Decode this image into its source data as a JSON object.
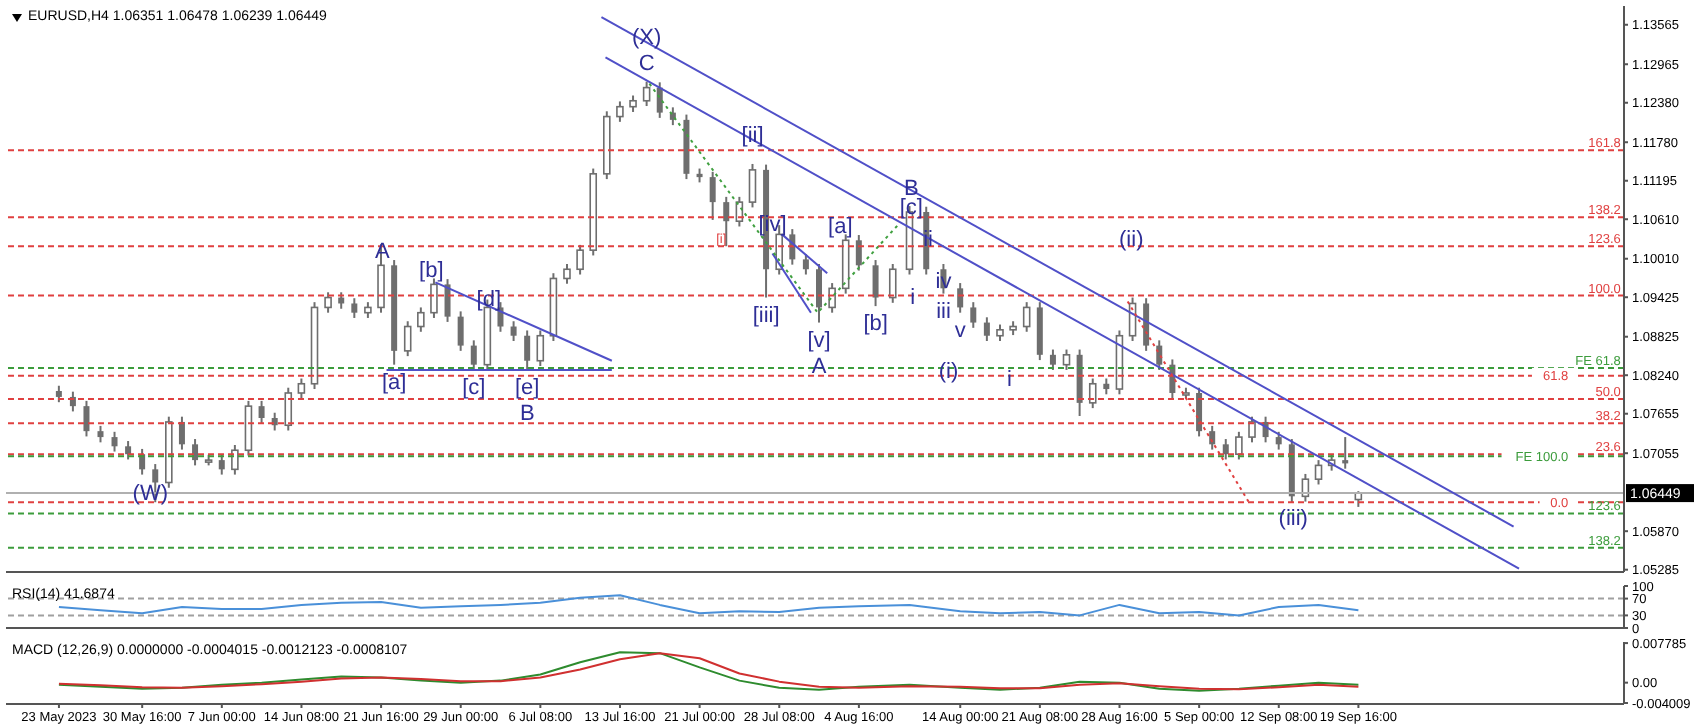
{
  "chart_data": [
    {
      "type": "candlestick",
      "title": "EURUSD,H4 1.06351 1.06478 1.06239 1.06449",
      "color": "#6e6e6e",
      "x": [
        "2023-05-23T00:00",
        "2023-05-24T07:00",
        "2023-05-25T13:00",
        "2023-05-26T20:00",
        "2023-05-28T03:00",
        "2023-05-29T09:00",
        "2023-05-30T16:00",
        "2023-05-31T21:00",
        "2023-06-02T03:00",
        "2023-06-03T08:00",
        "2023-06-04T13:00",
        "2023-06-05T19:00",
        "2023-06-07T00:00",
        "2023-06-08T05:00",
        "2023-06-09T11:00",
        "2023-06-10T16:00",
        "2023-06-11T21:00",
        "2023-06-13T03:00",
        "2023-06-14T08:00",
        "2023-06-15T13:00",
        "2023-06-16T19:00",
        "2023-06-18T00:00",
        "2023-06-19T05:00",
        "2023-06-20T11:00",
        "2023-06-21T16:00",
        "2023-06-22T21:00",
        "2023-06-24T03:00",
        "2023-06-25T08:00",
        "2023-06-26T13:00",
        "2023-06-27T19:00",
        "2023-06-29T00:00",
        "2023-06-30T05:00",
        "2023-07-01T11:00",
        "2023-07-02T16:00",
        "2023-07-03T21:00",
        "2023-07-05T03:00",
        "2023-07-06T08:00",
        "2023-07-07T13:00",
        "2023-07-08T19:00",
        "2023-07-10T00:00",
        "2023-07-11T05:00",
        "2023-07-12T11:00",
        "2023-07-13T16:00",
        "2023-07-14T21:00",
        "2023-07-16T03:00",
        "2023-07-17T08:00",
        "2023-07-18T13:00",
        "2023-07-19T19:00",
        "2023-07-21T00:00",
        "2023-07-22T05:00",
        "2023-07-23T11:00",
        "2023-07-24T16:00",
        "2023-07-25T21:00",
        "2023-07-27T03:00",
        "2023-07-28T08:00",
        "2023-07-29T13:00",
        "2023-07-30T19:00",
        "2023-08-01T00:00",
        "2023-08-02T05:00",
        "2023-08-03T11:00",
        "2023-08-04T16:00",
        "2023-08-06T05:00",
        "2023-08-07T19:00",
        "2023-08-09T08:00",
        "2023-08-10T21:00",
        "2023-08-12T11:00",
        "2023-08-14T00:00",
        "2023-08-15T05:00",
        "2023-08-16T11:00",
        "2023-08-17T16:00",
        "2023-08-18T21:00",
        "2023-08-20T03:00",
        "2023-08-21T08:00",
        "2023-08-22T13:00",
        "2023-08-23T19:00",
        "2023-08-25T00:00",
        "2023-08-26T05:00",
        "2023-08-27T11:00",
        "2023-08-28T16:00",
        "2023-08-29T21:00",
        "2023-08-31T03:00",
        "2023-09-01T08:00",
        "2023-09-02T13:00",
        "2023-09-03T19:00",
        "2023-09-05T00:00",
        "2023-09-06T05:00",
        "2023-09-07T11:00",
        "2023-09-08T16:00",
        "2023-09-09T21:00",
        "2023-09-11T03:00",
        "2023-09-12T08:00",
        "2023-09-13T13:00",
        "2023-09-14T19:00",
        "2023-09-16T00:00",
        "2023-09-17T05:00",
        "2023-09-18T11:00",
        "2023-09-19T16:00"
      ],
      "ohlc": [
        [
          1.08,
          1.0808,
          1.0783,
          1.0791
        ],
        [
          1.0791,
          1.0799,
          1.0769,
          1.0777
        ],
        [
          1.0777,
          1.0785,
          1.0731,
          1.0739
        ],
        [
          1.0739,
          1.0747,
          1.0722,
          1.073
        ],
        [
          1.073,
          1.0738,
          1.0708,
          1.0716
        ],
        [
          1.0716,
          1.0724,
          1.0696,
          1.0704
        ],
        [
          1.0704,
          1.0712,
          1.0673,
          1.0681
        ],
        [
          1.0681,
          1.0689,
          1.0631,
          1.0661
        ],
        [
          1.0661,
          1.0761,
          1.0653,
          1.0753
        ],
        [
          1.0753,
          1.0761,
          1.0711,
          1.0719
        ],
        [
          1.0719,
          1.0727,
          1.0687,
          1.0695
        ],
        [
          1.0695,
          1.0703,
          1.0687,
          1.0695
        ],
        [
          1.0695,
          1.0703,
          1.0673,
          1.0681
        ],
        [
          1.0681,
          1.0718,
          1.0673,
          1.071
        ],
        [
          1.071,
          1.0785,
          1.0702,
          1.0777
        ],
        [
          1.0777,
          1.0785,
          1.0751,
          1.0759
        ],
        [
          1.0759,
          1.0767,
          1.074,
          1.0748
        ],
        [
          1.0748,
          1.0805,
          1.074,
          1.0797
        ],
        [
          1.0797,
          1.0819,
          1.0789,
          1.0811
        ],
        [
          1.0811,
          1.0935,
          1.0803,
          1.0927
        ],
        [
          1.0927,
          1.095,
          1.0919,
          1.0942
        ],
        [
          1.0942,
          1.095,
          1.0925,
          1.0933
        ],
        [
          1.0933,
          1.0941,
          1.0911,
          1.0919
        ],
        [
          1.0919,
          1.0935,
          1.0911,
          1.0927
        ],
        [
          1.0927,
          1.1023,
          1.0919,
          1.0991
        ],
        [
          1.0991,
          1.0999,
          1.084,
          1.0861
        ],
        [
          1.0861,
          1.0906,
          1.0853,
          1.0898
        ],
        [
          1.0898,
          1.0927,
          1.089,
          1.0919
        ],
        [
          1.0919,
          1.0971,
          1.0911,
          1.0962
        ],
        [
          1.0962,
          1.097,
          1.0905,
          1.0913
        ],
        [
          1.0913,
          1.0921,
          1.0861,
          1.0869
        ],
        [
          1.0869,
          1.0877,
          1.0832,
          1.084
        ],
        [
          1.084,
          1.0939,
          1.0832,
          1.0927
        ],
        [
          1.0927,
          1.0935,
          1.089,
          1.0898
        ],
        [
          1.0898,
          1.0906,
          1.0876,
          1.0884
        ],
        [
          1.0884,
          1.0892,
          1.0832,
          1.0846
        ],
        [
          1.0846,
          1.0892,
          1.0838,
          1.0884
        ],
        [
          1.0884,
          1.0979,
          1.0876,
          1.0971
        ],
        [
          1.0971,
          1.0993,
          1.0963,
          1.0985
        ],
        [
          1.0985,
          1.1022,
          1.0977,
          1.1014
        ],
        [
          1.1014,
          1.1138,
          1.1006,
          1.113
        ],
        [
          1.113,
          1.1225,
          1.1122,
          1.1217
        ],
        [
          1.1217,
          1.124,
          1.1209,
          1.1232
        ],
        [
          1.1232,
          1.1249,
          1.1224,
          1.1241
        ],
        [
          1.1241,
          1.127,
          1.1233,
          1.1261
        ],
        [
          1.1261,
          1.1269,
          1.1215,
          1.1223
        ],
        [
          1.1223,
          1.1231,
          1.1204,
          1.1212
        ],
        [
          1.1212,
          1.122,
          1.1122,
          1.113
        ],
        [
          1.113,
          1.1138,
          1.1117,
          1.1125
        ],
        [
          1.1125,
          1.1133,
          1.106,
          1.1087
        ],
        [
          1.1087,
          1.1095,
          1.102,
          1.1058
        ],
        [
          1.1058,
          1.1095,
          1.105,
          1.1087
        ],
        [
          1.1087,
          1.1145,
          1.1079,
          1.1136
        ],
        [
          1.1136,
          1.1144,
          1.0942,
          1.0985
        ],
        [
          1.0985,
          1.1052,
          1.0977,
          1.1038
        ],
        [
          1.1038,
          1.1046,
          1.0992,
          1.1
        ],
        [
          1.1,
          1.1008,
          1.0977,
          1.0985
        ],
        [
          1.0985,
          1.0993,
          1.0904,
          1.0927
        ],
        [
          1.0927,
          1.0964,
          1.0919,
          1.0956
        ],
        [
          1.0956,
          1.1038,
          1.0948,
          1.1029
        ],
        [
          1.1029,
          1.1037,
          1.0983,
          1.0991
        ],
        [
          1.0991,
          1.0999,
          1.0929,
          1.0942
        ],
        [
          1.0942,
          1.0993,
          1.0934,
          1.0985
        ],
        [
          1.0985,
          1.1081,
          1.0977,
          1.1072
        ],
        [
          1.1072,
          1.108,
          1.0977,
          1.0985
        ],
        [
          1.0985,
          1.0993,
          1.0948,
          1.0956
        ],
        [
          1.0956,
          1.0964,
          1.0919,
          1.0927
        ],
        [
          1.0927,
          1.0935,
          1.0896,
          1.0904
        ],
        [
          1.0904,
          1.0912,
          1.0876,
          1.0884
        ],
        [
          1.0884,
          1.0901,
          1.0876,
          1.0893
        ],
        [
          1.0893,
          1.0906,
          1.0885,
          1.0898
        ],
        [
          1.0898,
          1.0935,
          1.089,
          1.0927
        ],
        [
          1.0927,
          1.0935,
          1.0847,
          1.0855
        ],
        [
          1.0855,
          1.0863,
          1.0832,
          1.084
        ],
        [
          1.084,
          1.0863,
          1.0832,
          1.0855
        ],
        [
          1.0855,
          1.0863,
          1.0762,
          1.0782
        ],
        [
          1.0782,
          1.0819,
          1.0774,
          1.0811
        ],
        [
          1.0811,
          1.0819,
          1.0795,
          1.0803
        ],
        [
          1.0803,
          1.0892,
          1.0795,
          1.0884
        ],
        [
          1.0884,
          1.0942,
          1.0876,
          1.0933
        ],
        [
          1.0933,
          1.0941,
          1.0861,
          1.0869
        ],
        [
          1.0869,
          1.0877,
          1.0832,
          1.084
        ],
        [
          1.084,
          1.0848,
          1.0789,
          1.0797
        ],
        [
          1.0797,
          1.0805,
          1.0789,
          1.0797
        ],
        [
          1.0797,
          1.0805,
          1.0731,
          1.0739
        ],
        [
          1.0739,
          1.0747,
          1.0711,
          1.0719
        ],
        [
          1.0719,
          1.0727,
          1.0696,
          1.0704
        ],
        [
          1.0704,
          1.0738,
          1.0696,
          1.073
        ],
        [
          1.073,
          1.0761,
          1.0722,
          1.0753
        ],
        [
          1.0753,
          1.0761,
          1.0722,
          1.073
        ],
        [
          1.073,
          1.0738,
          1.0711,
          1.0719
        ],
        [
          1.0719,
          1.0727,
          1.0631,
          1.064
        ],
        [
          1.064,
          1.0674,
          1.0632,
          1.0666
        ],
        [
          1.0666,
          1.0695,
          1.0658,
          1.0687
        ],
        [
          1.0687,
          1.0703,
          1.0679,
          1.0695
        ],
        [
          1.0695,
          1.073,
          1.0682,
          1.069
        ],
        [
          1.06351,
          1.06478,
          1.06239,
          1.06449
        ]
      ],
      "series": [
        {
          "type": "line",
          "color": "#5050c8",
          "line_style": "solid",
          "x": [
            "2023-07-11T23:00",
            "2023-10-03T23:00"
          ],
          "values": [
            1.1368,
            1.0594
          ]
        },
        {
          "type": "line",
          "color": "#5050c8",
          "line_style": "solid",
          "x": [
            "2023-07-12T08:00",
            "2023-10-04T11:00"
          ],
          "values": [
            1.1307,
            1.053
          ]
        },
        {
          "type": "line",
          "color": "#5050c8",
          "line_style": "solid",
          "x": [
            "2023-06-26T16:00",
            "2023-07-12T22:00"
          ],
          "values": [
            1.0965,
            1.0846
          ]
        },
        {
          "type": "line",
          "color": "#5050c8",
          "line_style": "solid",
          "x": [
            "2023-06-22T04:00",
            "2023-07-12T22:00"
          ],
          "values": [
            1.0832,
            1.0832
          ]
        },
        {
          "type": "line",
          "color": "#5050c8",
          "line_style": "solid",
          "x": [
            "2023-07-28T14:00",
            "2023-08-01T18:00"
          ],
          "values": [
            1.1038,
            1.0979
          ]
        },
        {
          "type": "line",
          "color": "#5050c8",
          "line_style": "solid",
          "x": [
            "2023-07-27T17:00",
            "2023-07-31T06:00"
          ],
          "values": [
            1.1009,
            1.0919
          ]
        },
        {
          "type": "line",
          "color": "#40a040",
          "line_style": "dotted",
          "x": [
            "2023-07-16T09:00",
            "2023-07-31T21:00",
            "2023-08-08T06:00"
          ],
          "values": [
            1.1267,
            1.0919,
            1.1052
          ]
        },
        {
          "type": "line",
          "color": "#e04040",
          "line_style": "dotted",
          "x": [
            "2023-08-29T10:00",
            "2023-09-09T13:00"
          ],
          "values": [
            1.0936,
            1.0632
          ]
        }
      ],
      "annotations": [
        {
          "text": "C",
          "x": "2023-07-16T03:00",
          "y": 1.127
        },
        {
          "text": "(X)",
          "x": "2023-07-16T03:00",
          "y": 1.127
        },
        {
          "text": "[ii]",
          "x": "2023-07-25T21:00",
          "y": 1.1188
        },
        {
          "text": "B",
          "x": "2023-08-09T12:00",
          "y": 1.1107
        },
        {
          "text": "[c]",
          "x": "2023-08-09T12:00",
          "y": 1.1078
        },
        {
          "text": "ii",
          "x": "2023-08-11T01:00",
          "y": 1.1029
        },
        {
          "text": "i",
          "x": "2023-08-09T15:00",
          "y": 1.0942
        },
        {
          "text": "iv",
          "x": "2023-08-12T11:00",
          "y": 1.0965
        },
        {
          "text": "iii",
          "x": "2023-08-12T11:00",
          "y": 1.0948
        },
        {
          "text": "v",
          "x": "2023-08-14T00:00",
          "y": 1.0919
        },
        {
          "text": "(i)",
          "x": "2023-08-12T22:00",
          "y": 1.0829
        },
        {
          "text": "i",
          "x": "2023-08-18T13:00",
          "y": 1.0817
        },
        {
          "text": "(ii)",
          "x": "2023-08-29T18:00",
          "y": 1.1029
        },
        {
          "text": "(iii)",
          "x": "2023-09-13T16:00",
          "y": 1.0605
        },
        {
          "text": "A",
          "x": "2023-06-21T19:00",
          "y": 1.1011
        },
        {
          "text": "[a]",
          "x": "2023-06-22T21:00",
          "y": 1.084
        },
        {
          "text": "[b]",
          "x": "2023-06-26T07:00",
          "y": 1.0982
        },
        {
          "text": "[c]",
          "x": "2023-06-30T05:00",
          "y": 1.0832
        },
        {
          "text": "[d]",
          "x": "2023-07-01T14:00",
          "y": 1.0939
        },
        {
          "text": "[e]",
          "x": "2023-07-05T03:00",
          "y": 1.0832
        },
        {
          "text": "B",
          "x": "2023-07-05T03:00",
          "y": 1.0832
        },
        {
          "text": "(W)",
          "x": "2023-05-31T10:00",
          "y": 1.0643
        },
        {
          "text": "[i]",
          "x": "2023-07-23T11:00",
          "y": 1.102
        },
        {
          "text": "[iii]",
          "x": "2023-07-27T03:00",
          "y": 1.0942
        },
        {
          "text": "[iv]",
          "x": "2023-07-27T17:00",
          "y": 1.1052
        },
        {
          "text": "[v]",
          "x": "2023-08-01T00:00",
          "y": 1.0904
        },
        {
          "text": "A",
          "x": "2023-08-01T00:00",
          "y": 1.0904
        },
        {
          "text": "[a]",
          "x": "2023-08-02T23:00",
          "y": 1.1049
        },
        {
          "text": "[b]",
          "x": "2023-08-06T05:00",
          "y": 1.0929
        },
        {
          "text": "161.8",
          "x": "2023-10-13T20:00",
          "y": 1.1166
        },
        {
          "text": "138.2",
          "x": "2023-10-13T20:00",
          "y": 1.1064
        },
        {
          "text": "123.6",
          "x": "2023-10-13T20:00",
          "y": 1.102
        },
        {
          "text": "100.0",
          "x": "2023-10-13T20:00",
          "y": 1.0945
        },
        {
          "text": "FE 61.8",
          "x": "2023-10-13T20:00",
          "y": 1.0835
        },
        {
          "text": "61.8",
          "x": "2023-10-09T00:00",
          "y": 1.0823
        },
        {
          "text": "50.0",
          "x": "2023-10-13T20:00",
          "y": 1.0788
        },
        {
          "text": "38.2",
          "x": "2023-10-13T20:00",
          "y": 1.0751
        },
        {
          "text": "23.6",
          "x": "2023-10-13T20:00",
          "y": 1.0704
        },
        {
          "text": "FE 100.0",
          "x": "2023-10-09T00:00",
          "y": 1.0701
        },
        {
          "text": "0.0",
          "x": "2023-10-09T00:00",
          "y": 1.0631
        },
        {
          "text": "123.6",
          "x": "2023-10-13T20:00",
          "y": 1.0614
        },
        {
          "text": "138.2",
          "x": "2023-10-13T20:00",
          "y": 1.0562
        }
      ],
      "ref_lines": [
        {
          "axis": "y",
          "value": 1.1166,
          "color": "#e04040",
          "line_style": "dashed"
        },
        {
          "axis": "y",
          "value": 1.1064,
          "color": "#e04040",
          "line_style": "dashed"
        },
        {
          "axis": "y",
          "value": 1.102,
          "color": "#e04040",
          "line_style": "dashed"
        },
        {
          "axis": "y",
          "value": 1.0945,
          "color": "#e04040",
          "line_style": "dashed"
        },
        {
          "axis": "y",
          "value": 1.0835,
          "color": "#3c9c3c",
          "line_style": "dashed"
        },
        {
          "axis": "y",
          "value": 1.0823,
          "color": "#e04040",
          "line_style": "dashed"
        },
        {
          "axis": "y",
          "value": 1.0788,
          "color": "#e04040",
          "line_style": "dashed"
        },
        {
          "axis": "y",
          "value": 1.0751,
          "color": "#e04040",
          "line_style": "dashed"
        },
        {
          "axis": "y",
          "value": 1.0704,
          "color": "#e04040",
          "line_style": "dashed"
        },
        {
          "axis": "y",
          "value": 1.0701,
          "color": "#3c9c3c",
          "line_style": "dashed"
        },
        {
          "axis": "y",
          "value": 1.0631,
          "color": "#e04040",
          "line_style": "dashed"
        },
        {
          "axis": "y",
          "value": 1.0614,
          "color": "#3c9c3c",
          "line_style": "dashed"
        },
        {
          "axis": "y",
          "value": 1.0562,
          "color": "#3c9c3c",
          "line_style": "dashed"
        },
        {
          "axis": "y",
          "value": 1.06449,
          "label": "1.06449",
          "color": "#b0b0b0",
          "line_style": "solid"
        }
      ],
      "xlim": [
        "2023-05-18T03:00",
        "2023-10-14T03:00"
      ],
      "ylim": [
        1.0525,
        1.1385
      ],
      "yticks": [
        1.13565,
        1.12965,
        {
          "value": 1.1238,
          "label": "1.12380"
        },
        {
          "value": 1.1178,
          "label": "1.11780"
        },
        1.11195,
        {
          "value": 1.1061,
          "label": "1.10610"
        },
        {
          "value": 1.1001,
          "label": "1.10010"
        },
        1.09425,
        1.08825,
        {
          "value": 1.0824,
          "label": "1.08240"
        },
        1.07655,
        1.07055,
        {
          "value": 1.0587,
          "label": "1.05870"
        },
        1.05285
      ],
      "tick_labels": "y",
      "marker": "none"
    },
    {
      "type": "line",
      "title": "RSI(14) 41.6874",
      "x": [
        "2023-05-23T00:00",
        "2023-05-26T20:00",
        "2023-05-30T16:00",
        "2023-06-03T08:00",
        "2023-06-07T00:00",
        "2023-06-10T16:00",
        "2023-06-14T08:00",
        "2023-06-18T00:00",
        "2023-06-21T16:00",
        "2023-06-25T08:00",
        "2023-06-29T00:00",
        "2023-07-02T16:00",
        "2023-07-06T08:00",
        "2023-07-10T00:00",
        "2023-07-13T16:00",
        "2023-07-17T08:00",
        "2023-07-21T00:00",
        "2023-07-24T16:00",
        "2023-07-28T08:00",
        "2023-08-01T00:00",
        "2023-08-04T16:00",
        "2023-08-09T08:00",
        "2023-08-14T00:00",
        "2023-08-17T16:00",
        "2023-08-21T08:00",
        "2023-08-25T00:00",
        "2023-08-28T16:00",
        "2023-09-01T08:00",
        "2023-09-05T00:00",
        "2023-09-08T16:00",
        "2023-09-12T08:00",
        "2023-09-16T00:00",
        "2023-09-19T16:00"
      ],
      "series": [
        {
          "color": "#4a90d9",
          "values": [
            50,
            42,
            35,
            50,
            45,
            45,
            55,
            60,
            62,
            48,
            52,
            55,
            60,
            72,
            78,
            55,
            35,
            40,
            38,
            48,
            52,
            55,
            40,
            35,
            38,
            30,
            55,
            35,
            38,
            30,
            50,
            55,
            42
          ]
        }
      ],
      "ref_lines": [
        {
          "axis": "y",
          "value": 70,
          "color": "#a0a0a0",
          "line_style": "dashed"
        },
        {
          "axis": "y",
          "value": 30,
          "color": "#a0a0a0",
          "line_style": "dashed"
        }
      ],
      "xlim": [
        "2023-05-18T03:00",
        "2023-10-14T03:00"
      ],
      "ylim": [
        0,
        100
      ],
      "yticks": [
        100,
        70,
        30,
        0
      ],
      "tick_labels": "y",
      "marker": "none"
    },
    {
      "type": "line",
      "title": "MACD (12,26,9) 0.0000000 -0.0004015 -0.0012123 -0.0008107",
      "x": [
        "2023-05-23T00:00",
        "2023-05-26T20:00",
        "2023-05-30T16:00",
        "2023-06-03T08:00",
        "2023-06-07T00:00",
        "2023-06-10T16:00",
        "2023-06-14T08:00",
        "2023-06-18T00:00",
        "2023-06-21T16:00",
        "2023-06-25T08:00",
        "2023-06-29T00:00",
        "2023-07-02T16:00",
        "2023-07-06T08:00",
        "2023-07-10T00:00",
        "2023-07-13T16:00",
        "2023-07-17T08:00",
        "2023-07-21T00:00",
        "2023-07-24T16:00",
        "2023-07-28T08:00",
        "2023-08-01T00:00",
        "2023-08-04T16:00",
        "2023-08-09T08:00",
        "2023-08-14T00:00",
        "2023-08-17T16:00",
        "2023-08-21T08:00",
        "2023-08-25T00:00",
        "2023-08-28T16:00",
        "2023-09-01T08:00",
        "2023-09-05T00:00",
        "2023-09-08T16:00",
        "2023-09-12T08:00",
        "2023-09-16T00:00",
        "2023-09-19T16:00"
      ],
      "series": [
        {
          "color": "#2e8b2e",
          "values": [
            -0.0004,
            -0.0008,
            -0.0012,
            -0.001,
            -0.0004,
            0.0,
            0.0006,
            0.0012,
            0.001,
            0.0004,
            0.0,
            0.0004,
            0.0016,
            0.004,
            0.006,
            0.0058,
            0.003,
            0.0004,
            -0.001,
            -0.0014,
            -0.0008,
            -0.0004,
            -0.001,
            -0.0014,
            -0.001,
            0.0002,
            0.0,
            -0.0012,
            -0.0016,
            -0.0012,
            -0.0006,
            0.0,
            -0.0004
          ]
        },
        {
          "color": "#d03030",
          "values": [
            -0.0002,
            -0.0005,
            -0.0009,
            -0.001,
            -0.0007,
            -0.0003,
            0.0002,
            0.0008,
            0.001,
            0.0007,
            0.0003,
            0.0003,
            0.001,
            0.0026,
            0.0046,
            0.0058,
            0.0048,
            0.0018,
            0.0002,
            -0.0008,
            -0.001,
            -0.0007,
            -0.0008,
            -0.0011,
            -0.0011,
            -0.0004,
            -0.0001,
            -0.0007,
            -0.0012,
            -0.0013,
            -0.0009,
            -0.0004,
            -0.0008
          ]
        }
      ],
      "xlim": [
        "2023-05-18T03:00",
        "2023-10-14T03:00"
      ],
      "ylim": [
        -0.0042,
        0.008
      ],
      "yticks": [
        0.007785,
        {
          "value": 0,
          "label": "0.00"
        },
        -0.004009
      ],
      "xticks": [
        {
          "value": "2023-05-23T00:00",
          "label": "23 May 2023"
        },
        {
          "value": "2023-05-30T16:00",
          "label": "30 May 16:00"
        },
        {
          "value": "2023-06-07T00:00",
          "label": "7 Jun 00:00"
        },
        {
          "value": "2023-06-14T08:00",
          "label": "14 Jun 08:00"
        },
        {
          "value": "2023-06-21T16:00",
          "label": "21 Jun 16:00"
        },
        {
          "value": "2023-06-29T00:00",
          "label": "29 Jun 00:00"
        },
        {
          "value": "2023-07-06T08:00",
          "label": "6 Jul 08:00"
        },
        {
          "value": "2023-07-13T16:00",
          "label": "13 Jul 16:00"
        },
        {
          "value": "2023-07-21T00:00",
          "label": "21 Jul 00:00"
        },
        {
          "value": "2023-07-28T08:00",
          "label": "28 Jul 08:00"
        },
        {
          "value": "2023-08-04T16:00",
          "label": "4 Aug 16:00"
        },
        {
          "value": "2023-08-14T00:00",
          "label": "14 Aug 00:00"
        },
        {
          "value": "2023-08-21T08:00",
          "label": "21 Aug 08:00"
        },
        {
          "value": "2023-08-28T16:00",
          "label": "28 Aug 16:00"
        },
        {
          "value": "2023-09-05T00:00",
          "label": "5 Sep 00:00"
        },
        {
          "value": "2023-09-12T08:00",
          "label": "12 Sep 08:00"
        },
        {
          "value": "2023-09-19T16:00",
          "label": "19 Sep 16:00"
        }
      ],
      "marker": "none"
    }
  ]
}
